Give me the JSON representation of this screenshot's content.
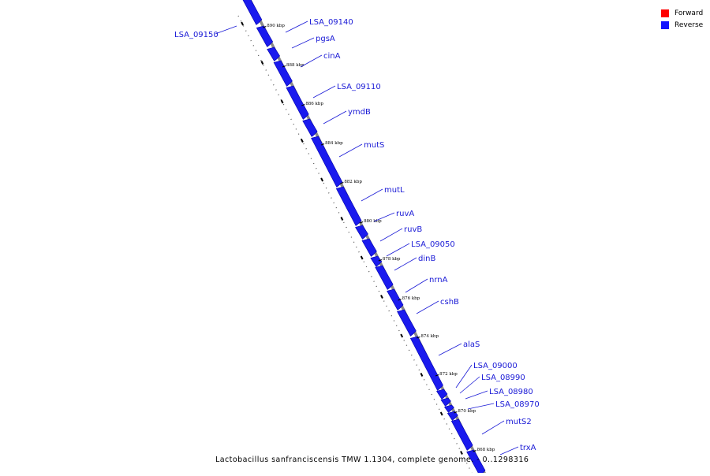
{
  "legend": {
    "forward_label": "Forward",
    "reverse_label": "Reverse",
    "forward_color": "#ff0000",
    "reverse_color": "#1414ff"
  },
  "caption": "Lactobacillus sanfranciscensis TMW 1.1304, complete genome. - 0..1298316",
  "track": {
    "gene_color": "#1a1aee",
    "backbone_color": "#8a8a8a"
  },
  "ticks": [
    {
      "label": "890 kbp",
      "kbp": 890
    },
    {
      "label": "888 kbp",
      "kbp": 888
    },
    {
      "label": "886 kbp",
      "kbp": 886
    },
    {
      "label": "884 kbp",
      "kbp": 884
    },
    {
      "label": "882 kbp",
      "kbp": 882
    },
    {
      "label": "880 kbp",
      "kbp": 880
    },
    {
      "label": "878 kbp",
      "kbp": 878
    },
    {
      "label": "876 kbp",
      "kbp": 876
    },
    {
      "label": "874 kbp",
      "kbp": 874
    },
    {
      "label": "872 kbp",
      "kbp": 872
    },
    {
      "label": "870 kbp",
      "kbp": 870
    },
    {
      "label": "868 kbp",
      "kbp": 868
    }
  ],
  "genes": [
    {
      "name": "LSA_09150",
      "strand": "reverse",
      "side": "left"
    },
    {
      "name": "LSA_09140",
      "strand": "reverse",
      "side": "right"
    },
    {
      "name": "pgsA",
      "strand": "reverse",
      "side": "right"
    },
    {
      "name": "cinA",
      "strand": "reverse",
      "side": "right"
    },
    {
      "name": "LSA_09110",
      "strand": "reverse",
      "side": "right"
    },
    {
      "name": "ymdB",
      "strand": "reverse",
      "side": "right"
    },
    {
      "name": "mutS",
      "strand": "reverse",
      "side": "right"
    },
    {
      "name": "mutL",
      "strand": "reverse",
      "side": "right"
    },
    {
      "name": "ruvA",
      "strand": "reverse",
      "side": "right"
    },
    {
      "name": "ruvB",
      "strand": "reverse",
      "side": "right"
    },
    {
      "name": "LSA_09050",
      "strand": "reverse",
      "side": "right"
    },
    {
      "name": "dinB",
      "strand": "reverse",
      "side": "right"
    },
    {
      "name": "nrnA",
      "strand": "reverse",
      "side": "right"
    },
    {
      "name": "cshB",
      "strand": "reverse",
      "side": "right"
    },
    {
      "name": "alaS",
      "strand": "reverse",
      "side": "right"
    },
    {
      "name": "LSA_09000",
      "strand": "reverse",
      "side": "right"
    },
    {
      "name": "LSA_08990",
      "strand": "reverse",
      "side": "right"
    },
    {
      "name": "LSA_08980",
      "strand": "reverse",
      "side": "right"
    },
    {
      "name": "LSA_08970",
      "strand": "reverse",
      "side": "right"
    },
    {
      "name": "mutS2",
      "strand": "reverse",
      "side": "right"
    },
    {
      "name": "trxA",
      "strand": "reverse",
      "side": "right"
    }
  ]
}
